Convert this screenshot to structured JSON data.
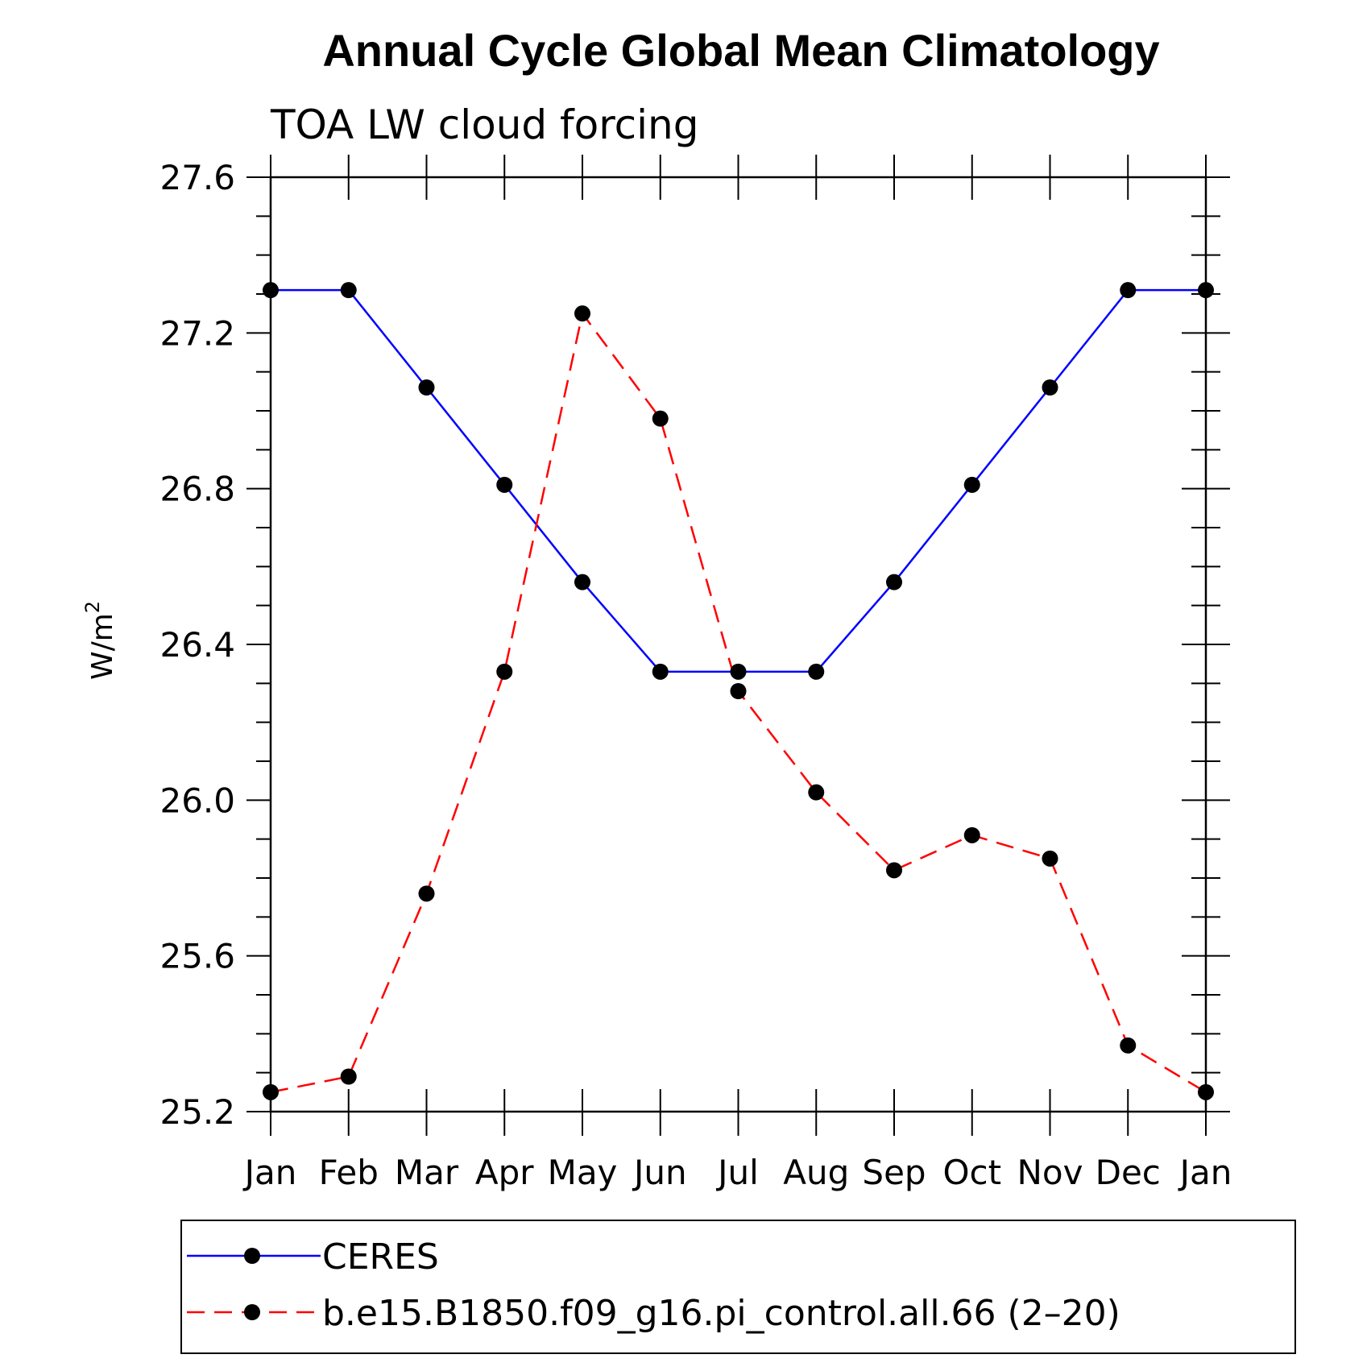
{
  "colors": {
    "ceres": "#0000ff",
    "model": "#ff0000",
    "marker": "#000000",
    "axis": "#000000"
  },
  "chart_data": {
    "type": "line",
    "title": "Annual Cycle Global Mean Climatology",
    "subtitle": "TOA LW cloud forcing",
    "xlabel": "",
    "ylabel": "W/m",
    "ylabel_sup": "2",
    "categories": [
      "Jan",
      "Feb",
      "Mar",
      "Apr",
      "May",
      "Jun",
      "Jul",
      "Aug",
      "Sep",
      "Oct",
      "Nov",
      "Dec",
      "Jan"
    ],
    "ylim": [
      25.2,
      27.6
    ],
    "yticks": [
      "25.2",
      "25.6",
      "26.0",
      "26.4",
      "26.8",
      "27.2",
      "27.6"
    ],
    "grid": false,
    "legend_position": "bottom",
    "series": [
      {
        "name": "CERES",
        "style": "solid",
        "color": "#0000ff",
        "values": [
          27.31,
          27.31,
          27.06,
          26.81,
          26.56,
          26.33,
          26.33,
          26.33,
          26.56,
          26.81,
          27.06,
          27.31,
          27.31
        ]
      },
      {
        "name": "b.e15.B1850.f09_g16.pi_control.all.66 (2–20)",
        "style": "dashed",
        "color": "#ff0000",
        "values": [
          25.25,
          25.29,
          25.76,
          26.33,
          27.25,
          26.98,
          26.28,
          26.02,
          25.82,
          25.91,
          25.85,
          25.37,
          25.25
        ]
      }
    ]
  }
}
